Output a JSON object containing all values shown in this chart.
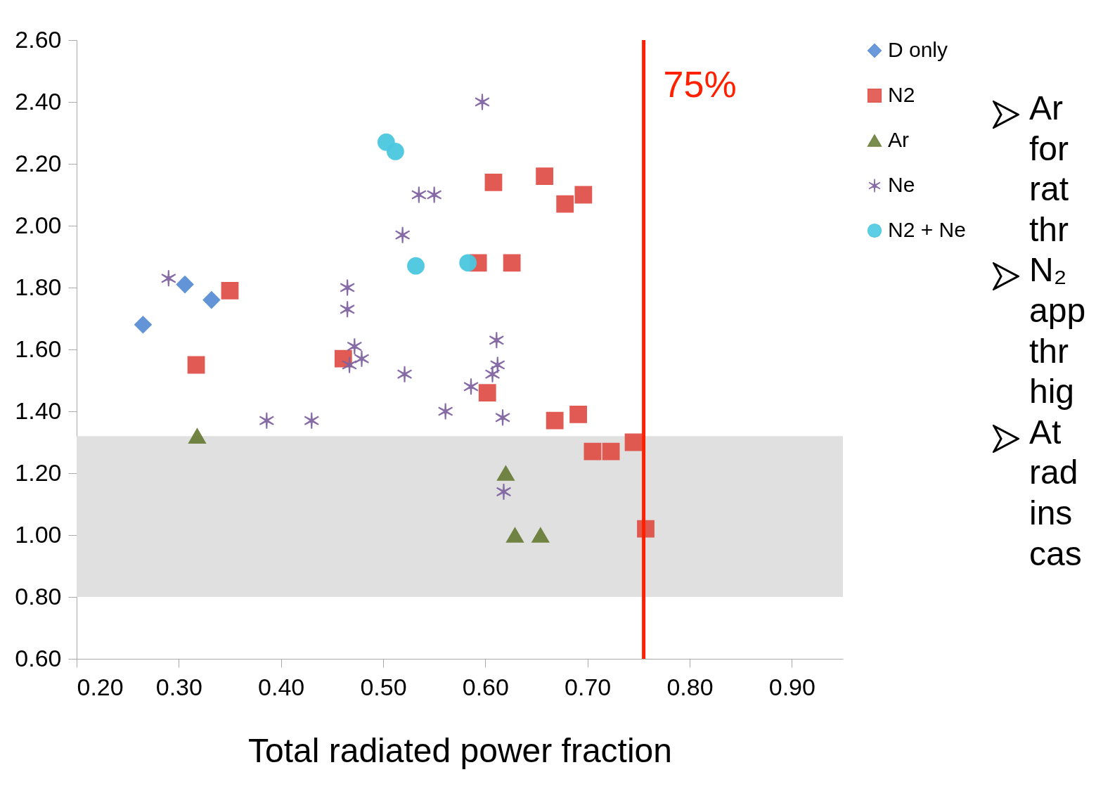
{
  "chart_data": {
    "type": "scatter",
    "xlabel": "Total radiated power fraction",
    "xlim": [
      0.2,
      0.95
    ],
    "ylim": [
      0.6,
      2.6
    ],
    "xticks": [
      {
        "value": 0.2,
        "label": "0.20"
      },
      {
        "value": 0.3,
        "label": "0.30"
      },
      {
        "value": 0.4,
        "label": "0.40"
      },
      {
        "value": 0.5,
        "label": "0.50"
      },
      {
        "value": 0.6,
        "label": "0.60"
      },
      {
        "value": 0.7,
        "label": "0.70"
      },
      {
        "value": 0.8,
        "label": "0.80"
      },
      {
        "value": 0.9,
        "label": "0.90"
      }
    ],
    "yticks": [
      {
        "value": 0.6,
        "label": "0.60"
      },
      {
        "value": 0.8,
        "label": "0.80"
      },
      {
        "value": 1.0,
        "label": "1.00"
      },
      {
        "value": 1.2,
        "label": "1.20"
      },
      {
        "value": 1.4,
        "label": "1.40"
      },
      {
        "value": 1.6,
        "label": "1.60"
      },
      {
        "value": 1.8,
        "label": "1.80"
      },
      {
        "value": 2.0,
        "label": "2.00"
      },
      {
        "value": 2.2,
        "label": "2.20"
      },
      {
        "value": 2.4,
        "label": "2.40"
      },
      {
        "value": 2.6,
        "label": "2.60"
      }
    ],
    "legend": "right",
    "series": [
      {
        "name": "D only",
        "color": "#5b8fd6",
        "marker": "diamond",
        "x": [
          0.265,
          0.306,
          0.332
        ],
        "values": [
          1.68,
          1.81,
          1.76
        ]
      },
      {
        "name": "N2",
        "color": "#e0524a",
        "marker": "square",
        "x": [
          0.35,
          0.317,
          0.461,
          0.608,
          0.658,
          0.678,
          0.696,
          0.593,
          0.626,
          0.602,
          0.668,
          0.691,
          0.705,
          0.723,
          0.745,
          0.757
        ],
        "values": [
          1.79,
          1.55,
          1.57,
          2.14,
          2.16,
          2.07,
          2.1,
          1.88,
          1.88,
          1.46,
          1.37,
          1.39,
          1.27,
          1.27,
          1.3,
          1.02
        ]
      },
      {
        "name": "Ar",
        "color": "#6b7f3a",
        "marker": "triangle",
        "x": [
          0.318,
          0.62,
          0.629,
          0.654
        ],
        "values": [
          1.32,
          1.2,
          1.0,
          1.0
        ]
      },
      {
        "name": "Ne",
        "color": "#8064a2",
        "marker": "cross",
        "x": [
          0.29,
          0.386,
          0.43,
          0.465,
          0.465,
          0.472,
          0.479,
          0.467,
          0.519,
          0.535,
          0.55,
          0.597,
          0.521,
          0.561,
          0.586,
          0.611,
          0.612,
          0.607,
          0.617,
          0.618
        ],
        "values": [
          1.83,
          1.37,
          1.37,
          1.8,
          1.73,
          1.61,
          1.57,
          1.55,
          1.97,
          2.1,
          2.1,
          2.4,
          1.52,
          1.4,
          1.48,
          1.63,
          1.55,
          1.52,
          1.38,
          1.14
        ]
      },
      {
        "name": "N2 + Ne",
        "color": "#4bc8e0",
        "marker": "circle",
        "x": [
          0.503,
          0.512,
          0.532,
          0.583
        ],
        "values": [
          2.27,
          2.24,
          1.87,
          1.88
        ]
      }
    ],
    "bands": [
      {
        "axis": "y",
        "from": 0.8,
        "to": 1.32,
        "color": "#e0e0e0"
      }
    ],
    "ref_lines": [
      {
        "axis": "x",
        "value": 0.755,
        "label": "75%",
        "color": "#ff2000"
      }
    ],
    "annotations": [
      "Ar\nfor\nrat\nthr",
      "N₂\napp\nthr\nhig",
      "At\nrad\nins\ncas"
    ]
  }
}
